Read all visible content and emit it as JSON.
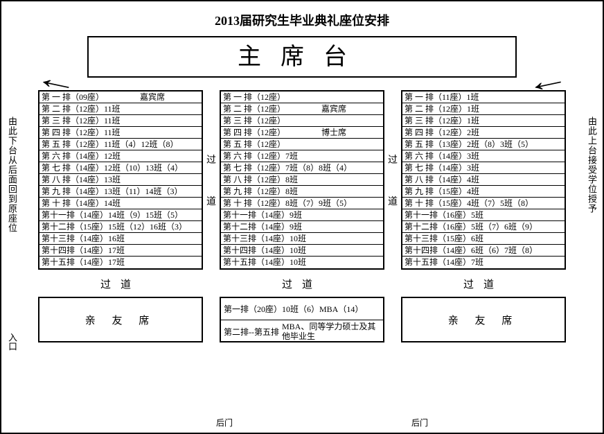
{
  "title": "2013届研究生毕业典礼座位安排",
  "stage_label": "主席台",
  "arrow_left": "←",
  "arrow_right": "←",
  "side_note_left": "由此下台从后面回到原座位",
  "side_note_right": "由此上台接受学位授予",
  "aisle_word": "过道",
  "aisle_char1": "过",
  "aisle_char2": "道",
  "entry_label": "入口",
  "back_door": "后门",
  "family_seat": "亲 友 席",
  "blocks": {
    "left": [
      {
        "c1": "第 一 排（09座）",
        "c2": "嘉宾席",
        "center": true
      },
      {
        "c1": "第 二 排（12座）11班",
        "c2": ""
      },
      {
        "c1": "第 三 排（12座）11班",
        "c2": ""
      },
      {
        "c1": "第 四 排（12座）11班",
        "c2": ""
      },
      {
        "c1": "第 五 排（12座）11班（4）12班（8）",
        "c2": ""
      },
      {
        "c1": "第 六 排（14座）12班",
        "c2": ""
      },
      {
        "c1": "第 七 排（14座）12班（10）13班（4）",
        "c2": ""
      },
      {
        "c1": "第 八 排（14座）13班",
        "c2": ""
      },
      {
        "c1": "第 九 排（14座）13班（11）14班（3）",
        "c2": ""
      },
      {
        "c1": "第 十 排（14座）14班",
        "c2": ""
      },
      {
        "c1": "第十一排（14座）14班（9）15班（5）",
        "c2": ""
      },
      {
        "c1": "第十二排（15座）15班（12）16班（3）",
        "c2": ""
      },
      {
        "c1": "第十三排（14座）16班",
        "c2": ""
      },
      {
        "c1": "第十四排（14座）17班",
        "c2": ""
      },
      {
        "c1": "第十五排（14座）17班",
        "c2": ""
      }
    ],
    "mid": [
      {
        "c1": "第 一 排（12座）",
        "c2": ""
      },
      {
        "c1": "第 二 排（12座）",
        "c2": "嘉宾席",
        "center": true
      },
      {
        "c1": "第 三 排（12座）",
        "c2": ""
      },
      {
        "c1": "第 四 排（12座）",
        "c2": "博士席",
        "center": true
      },
      {
        "c1": "第 五 排（12座）",
        "c2": ""
      },
      {
        "c1": "第 六 排（12座）7班",
        "c2": ""
      },
      {
        "c1": "第 七 排（12座）7班（8）8班（4）",
        "c2": ""
      },
      {
        "c1": "第 八 排（12座）8班",
        "c2": ""
      },
      {
        "c1": "第 九 排（12座）8班",
        "c2": ""
      },
      {
        "c1": "第 十 排（12座）8班（7）9班（5）",
        "c2": ""
      },
      {
        "c1": "第十一排（14座）9班",
        "c2": ""
      },
      {
        "c1": "第十二排（14座）9班",
        "c2": ""
      },
      {
        "c1": "第十三排（14座）10班",
        "c2": ""
      },
      {
        "c1": "第十四排（14座）10班",
        "c2": ""
      },
      {
        "c1": "第十五排（14座）10班",
        "c2": ""
      }
    ],
    "right": [
      {
        "c1": "第 一 排（11座）1班",
        "c2": ""
      },
      {
        "c1": "第 二 排（12座）1班",
        "c2": ""
      },
      {
        "c1": "第 三 排（12座）1班",
        "c2": ""
      },
      {
        "c1": "第 四 排（12座）2班",
        "c2": ""
      },
      {
        "c1": "第 五 排（13座）2班（8）3班（5）",
        "c2": ""
      },
      {
        "c1": "第 六 排（14座）3班",
        "c2": ""
      },
      {
        "c1": "第 七 排（14座）3班",
        "c2": ""
      },
      {
        "c1": "第 八 排（14座）4班",
        "c2": ""
      },
      {
        "c1": "第 九 排（15座）4班",
        "c2": ""
      },
      {
        "c1": "第 十 排（15座）4班（7）5班（8）",
        "c2": ""
      },
      {
        "c1": "第十一排（16座）5班",
        "c2": ""
      },
      {
        "c1": "第十二排（16座）5班（7）6班（9）",
        "c2": ""
      },
      {
        "c1": "第十三排（15座）6班",
        "c2": ""
      },
      {
        "c1": "第十四排（14座）6班（6）7班（8）",
        "c2": ""
      },
      {
        "c1": "第十五排（14座）7班",
        "c2": ""
      }
    ]
  },
  "back_mid": [
    {
      "label": "第一排（20座）",
      "text": "10班（6）MBA（14）"
    },
    {
      "label": "第二排--第五排",
      "text": "MBA、同等学力硕士及其他毕业生"
    }
  ]
}
